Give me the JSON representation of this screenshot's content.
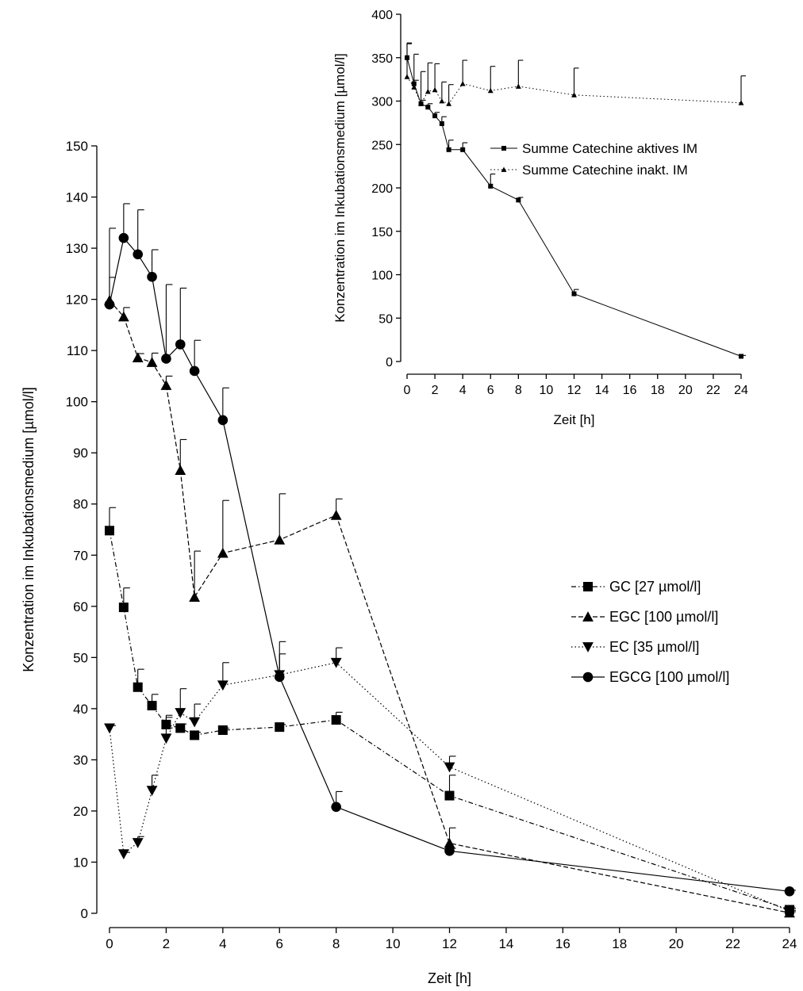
{
  "chart_data": [
    {
      "type": "line",
      "title": "",
      "xlabel": "Zeit [h]",
      "ylabel": "Konzentration im Inkubationsmedium [µmol/l]",
      "xlim": [
        0,
        24
      ],
      "ylim": [
        0,
        150
      ],
      "xticks": [
        0,
        2,
        4,
        6,
        8,
        10,
        12,
        14,
        16,
        18,
        20,
        22,
        24
      ],
      "yticks": [
        0,
        10,
        20,
        30,
        40,
        50,
        60,
        70,
        80,
        90,
        100,
        110,
        120,
        130,
        140,
        150
      ],
      "grid": false,
      "legend_position": "right",
      "series": [
        {
          "name": "GC [27 µmol/l]",
          "marker": "square",
          "dash": "dash-dot",
          "x": [
            0,
            0.5,
            1,
            1.5,
            2,
            2.5,
            3,
            4,
            6,
            8,
            12,
            24
          ],
          "y": [
            74.8,
            59.8,
            44.2,
            40.6,
            36.9,
            36.2,
            34.8,
            35.8,
            36.4,
            37.8,
            23,
            0.7
          ],
          "err": [
            4.5,
            3.8,
            3.5,
            2.2,
            1.8,
            0.8,
            0.6,
            0.4,
            0.5,
            1.5,
            4,
            0.3
          ]
        },
        {
          "name": "EGC [100 µmol/l]",
          "marker": "triangle-up",
          "dash": "dashed",
          "x": [
            0,
            0.5,
            1,
            1.5,
            2,
            2.5,
            3,
            4,
            6,
            8,
            12,
            24
          ],
          "y": [
            119.8,
            116.6,
            108.6,
            107.7,
            103.2,
            86.6,
            61.8,
            70.4,
            73,
            77.8,
            13.7,
            0.1
          ],
          "err": [
            4.5,
            1.8,
            0.8,
            1.8,
            1.8,
            6,
            9,
            10.3,
            9,
            3.2,
            3,
            0.2
          ]
        },
        {
          "name": "EC [35 µmol/l]",
          "marker": "triangle-down",
          "dash": "dotted",
          "x": [
            0,
            0.5,
            1,
            1.5,
            2,
            2.5,
            3,
            4,
            6,
            8,
            12,
            24
          ],
          "y": [
            36.2,
            11.6,
            13.8,
            24,
            34.2,
            39.2,
            37.4,
            44.6,
            46.6,
            49,
            28.6,
            0.4
          ],
          "err": [
            0.5,
            0.3,
            1.2,
            3,
            4.1,
            4.7,
            3.5,
            4.4,
            6.5,
            2.9,
            2.1,
            0.2
          ]
        },
        {
          "name": "EGCG [100 µmol/l]",
          "marker": "circle",
          "dash": "solid",
          "x": [
            0,
            0.5,
            1,
            1.5,
            2,
            2.5,
            3,
            4,
            6,
            8,
            12,
            24
          ],
          "y": [
            119,
            132,
            128.8,
            124.4,
            108.4,
            111.2,
            106,
            96.4,
            46.2,
            20.8,
            12.2,
            4.3
          ],
          "err": [
            14.9,
            6.7,
            8.7,
            5.3,
            14.5,
            11,
            6,
            6.3,
            4.5,
            3,
            0.5,
            0.2
          ]
        }
      ]
    },
    {
      "type": "line",
      "title": "",
      "xlabel": "Zeit [h]",
      "ylabel": "Konzentration im Inkubationsmedium [µmol/l]",
      "xlim": [
        0,
        24
      ],
      "ylim": [
        0,
        400
      ],
      "xticks": [
        0,
        2,
        4,
        6,
        8,
        10,
        12,
        14,
        16,
        18,
        20,
        22,
        24
      ],
      "yticks": [
        0,
        50,
        100,
        150,
        200,
        250,
        300,
        350,
        400
      ],
      "grid": false,
      "legend_position": "center-right",
      "series": [
        {
          "name": "Summe Catechine aktives IM",
          "marker": "square",
          "dash": "solid",
          "x": [
            0,
            0.5,
            1,
            1.5,
            2,
            2.5,
            3,
            4,
            6,
            8,
            12,
            24
          ],
          "y": [
            350,
            320,
            297,
            293,
            283,
            274,
            244,
            244,
            202,
            186,
            78,
            6
          ],
          "err": [
            17,
            4,
            4,
            4,
            4,
            8,
            11,
            8,
            14,
            3,
            5,
            1
          ]
        },
        {
          "name": "Summe Catechine inakt. IM",
          "marker": "triangle-up",
          "dash": "dotted",
          "x": [
            0,
            0.5,
            1,
            1.5,
            2,
            2.5,
            3,
            4,
            6,
            8,
            12,
            24
          ],
          "y": [
            328,
            316,
            297,
            311,
            313,
            300,
            297,
            320,
            312,
            317,
            307,
            298
          ],
          "err": [
            38,
            38,
            37,
            33,
            30,
            22,
            22,
            27,
            28,
            30,
            31,
            31
          ]
        }
      ]
    }
  ]
}
